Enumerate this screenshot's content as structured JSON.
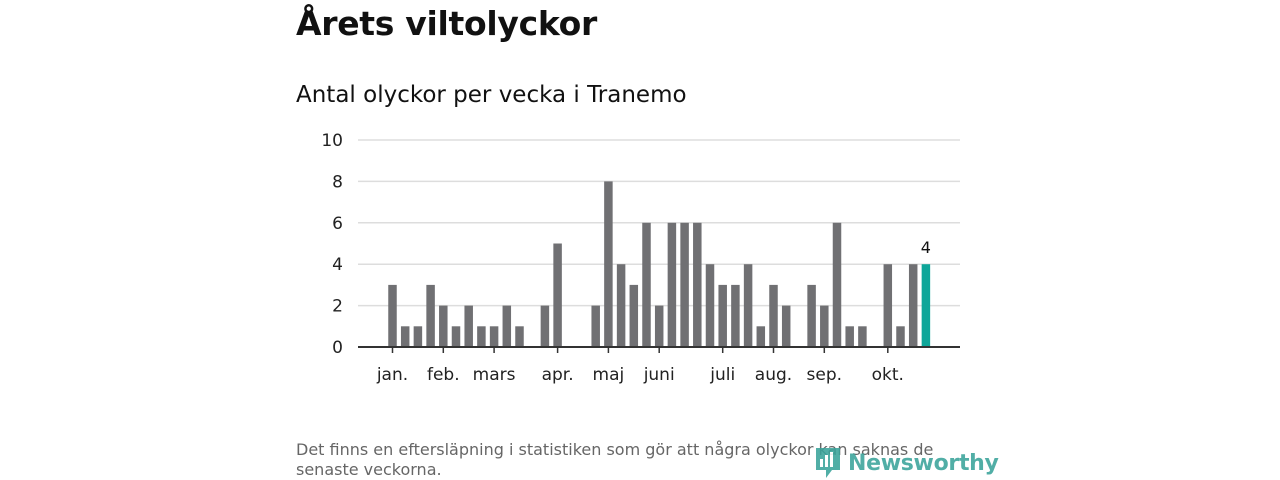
{
  "headline": "Årets viltolyckor",
  "footnote": "Det finns en eftersläpning i statistiken som gör att några olyckor kan saknas de senaste veckorna.",
  "logo": {
    "text": "Newsworthy",
    "icon": "newsworthy-logo-icon",
    "color": "#3aa39a"
  },
  "colors": {
    "bar": "#707073",
    "highlight": "#0ea699",
    "grid": "#dddddd",
    "axis": "#333333"
  },
  "chart_data": {
    "type": "bar",
    "title": "Antal olyckor per vecka i Tranemo",
    "xlabel": "",
    "ylabel": "",
    "ylim": [
      0,
      10
    ],
    "yticks": [
      0,
      2,
      4,
      6,
      8,
      10
    ],
    "grid": true,
    "weeks": [
      1,
      2,
      3,
      4,
      5,
      6,
      7,
      8,
      9,
      10,
      11,
      12,
      13,
      14,
      15,
      16,
      17,
      18,
      19,
      20,
      21,
      22,
      23,
      24,
      25,
      26,
      27,
      28,
      29,
      30,
      31,
      32,
      33,
      34,
      35,
      36,
      37,
      38,
      39,
      40,
      41,
      42,
      43
    ],
    "values": [
      3,
      1,
      1,
      3,
      2,
      1,
      2,
      1,
      1,
      2,
      1,
      0,
      2,
      5,
      0,
      0,
      2,
      8,
      4,
      3,
      6,
      2,
      6,
      6,
      6,
      4,
      3,
      3,
      4,
      1,
      3,
      2,
      0,
      3,
      2,
      6,
      1,
      1,
      0,
      4,
      1,
      4,
      4
    ],
    "month_labels": [
      {
        "label": "jan.",
        "week": 1
      },
      {
        "label": "feb.",
        "week": 5
      },
      {
        "label": "mars",
        "week": 9
      },
      {
        "label": "apr.",
        "week": 14
      },
      {
        "label": "maj",
        "week": 18
      },
      {
        "label": "juni",
        "week": 22
      },
      {
        "label": "juli",
        "week": 27
      },
      {
        "label": "aug.",
        "week": 31
      },
      {
        "label": "sep.",
        "week": 35
      },
      {
        "label": "okt.",
        "week": 40
      }
    ],
    "highlight_week": 43,
    "highlight_label": "4"
  }
}
